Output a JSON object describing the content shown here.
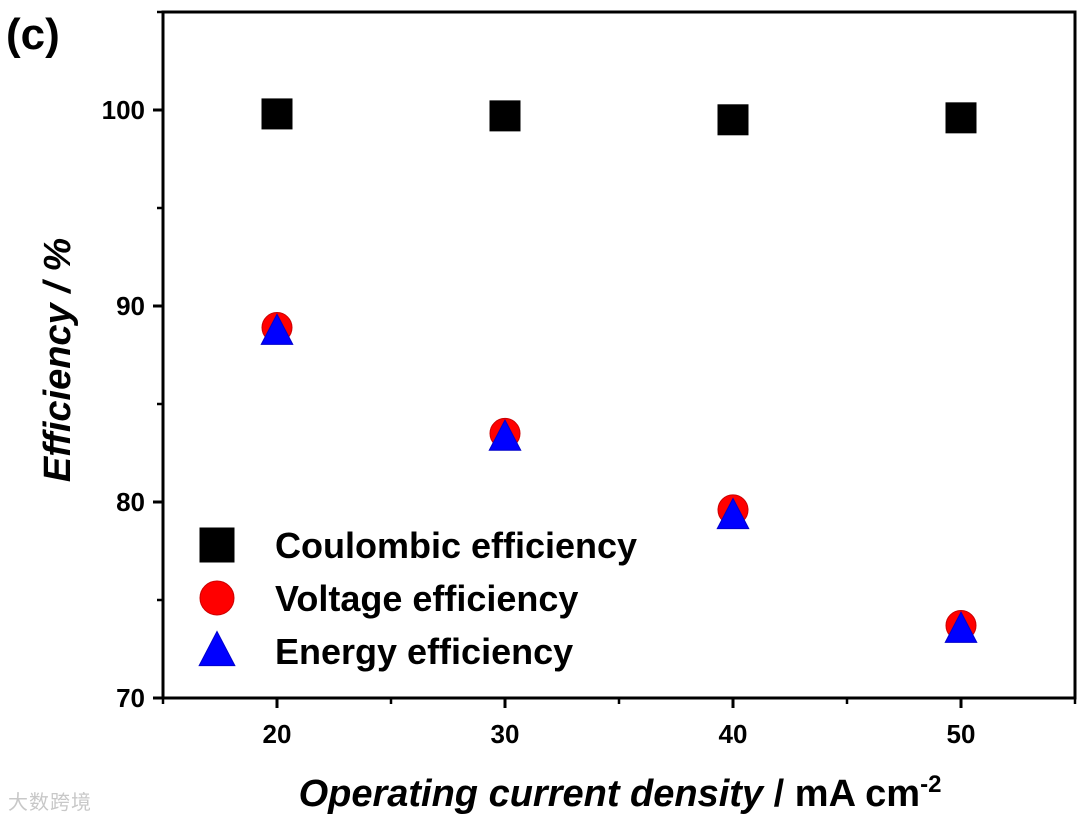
{
  "panel_label": "(c)",
  "watermark": "大数跨境",
  "chart_data": {
    "type": "scatter",
    "xlabel_italic": "Operating current density",
    "xlabel_unit": " / mA cm",
    "xlabel_unit_sup": "-2",
    "ylabel": "Efficiency / %",
    "xlim": [
      15,
      55
    ],
    "ylim": [
      70,
      105
    ],
    "x_ticks": [
      20,
      30,
      40,
      50
    ],
    "x_minor_ticks": [
      15,
      25,
      35,
      45,
      55
    ],
    "y_ticks": [
      70,
      80,
      90,
      100
    ],
    "y_minor_ticks": [
      75,
      85,
      95,
      105
    ],
    "x": [
      20,
      30,
      40,
      50
    ],
    "series": [
      {
        "name": "Coulombic efficiency",
        "marker": "square",
        "color": "#000000",
        "edge": "#000000",
        "values": [
          99.8,
          99.7,
          99.5,
          99.6
        ]
      },
      {
        "name": "Voltage efficiency",
        "marker": "circle",
        "color": "#ff0000",
        "edge": "#cc0000",
        "values": [
          88.9,
          83.5,
          79.6,
          73.7
        ]
      },
      {
        "name": "Energy efficiency",
        "marker": "triangle",
        "color": "#0000ff",
        "edge": "#0000cc",
        "values": [
          88.7,
          83.3,
          79.3,
          73.5
        ]
      }
    ],
    "legend_position": "bottom-left"
  }
}
